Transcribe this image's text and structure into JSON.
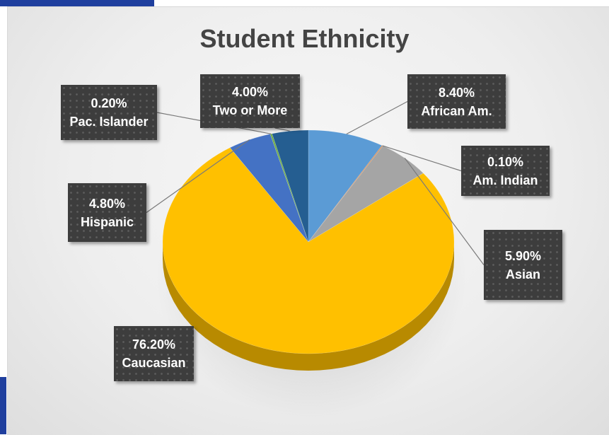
{
  "chart_data": {
    "type": "pie",
    "title": "Student Ethnicity",
    "slices": [
      {
        "name": "African Am.",
        "value": 8.4,
        "value_label": "8.40%",
        "color": "#5b9bd5"
      },
      {
        "name": "Am. Indian",
        "value": 0.1,
        "value_label": "0.10%",
        "color": "#e07a2e"
      },
      {
        "name": "Asian",
        "value": 5.9,
        "value_label": "5.90%",
        "color": "#a5a5a5"
      },
      {
        "name": "Caucasian",
        "value": 76.2,
        "value_label": "76.20%",
        "color": "#ffc000"
      },
      {
        "name": "Hispanic",
        "value": 4.8,
        "value_label": "4.80%",
        "color": "#4472c4"
      },
      {
        "name": "Pac. Islander",
        "value": 0.2,
        "value_label": "0.20%",
        "color": "#70ad47"
      },
      {
        "name": "Two or More",
        "value": 4.0,
        "value_label": "4.00%",
        "color": "#255e91"
      }
    ],
    "legend": "none",
    "data_labels": "callout"
  }
}
